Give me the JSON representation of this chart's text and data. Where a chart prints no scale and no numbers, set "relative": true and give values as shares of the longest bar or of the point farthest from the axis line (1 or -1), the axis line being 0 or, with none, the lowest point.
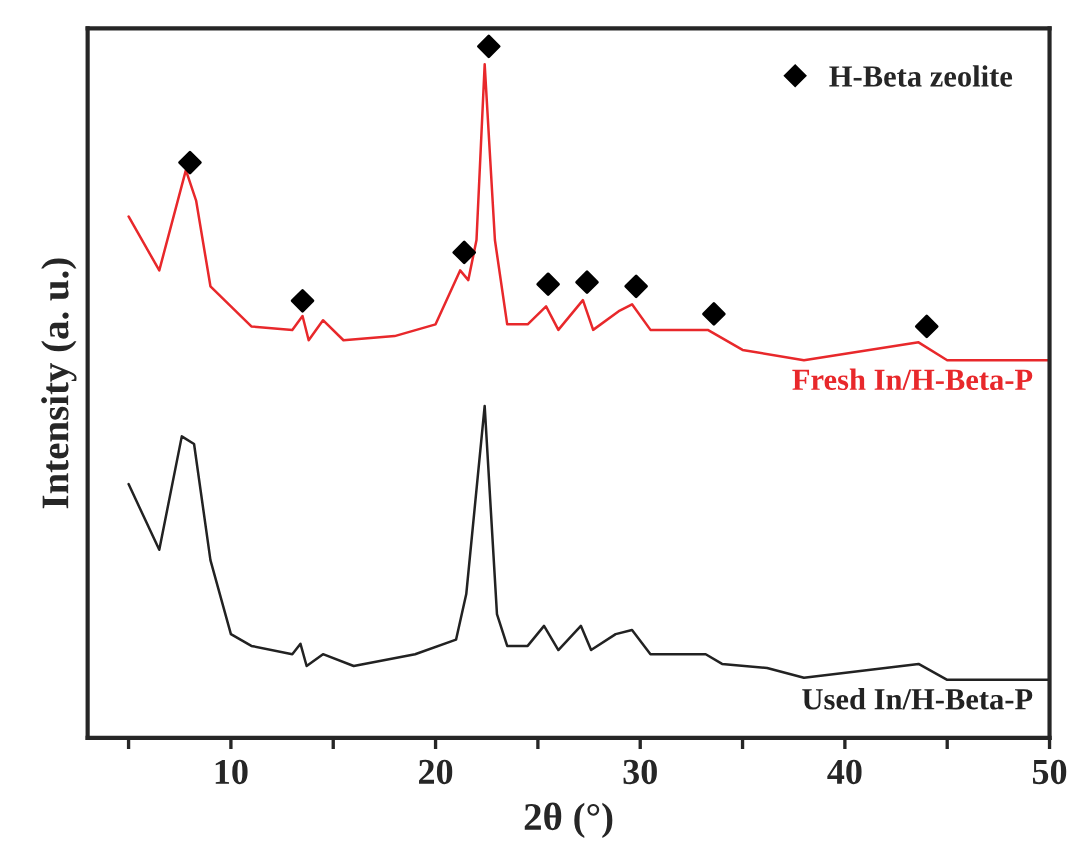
{
  "chart_data": {
    "type": "line",
    "relative": true,
    "xlabel": "2θ (°)",
    "ylabel": "Intensity (a. u.)",
    "xlim": [
      3,
      50
    ],
    "xticks": [
      {
        "value": 5,
        "label": null
      },
      10,
      {
        "value": 15,
        "label": null
      },
      20,
      {
        "value": 25,
        "label": null
      },
      30,
      {
        "value": 35,
        "label": null
      },
      40,
      {
        "value": 45,
        "label": null
      },
      50
    ],
    "grid": false,
    "legend": "top right",
    "tick_labels": "x",
    "series": [
      {
        "name": "Fresh In/H-Beta-P",
        "color": "#e8282b",
        "marker": "none",
        "x": [
          5,
          6.5,
          7.8,
          8.3,
          9,
          10,
          11,
          13,
          13.5,
          13.8,
          14.5,
          15.5,
          18,
          20,
          21.2,
          21.6,
          22.0,
          22.4,
          22.9,
          23.5,
          24.5,
          25.4,
          26,
          27.2,
          27.7,
          29,
          29.6,
          30.5,
          33.3,
          35,
          38,
          43.6,
          45,
          50
        ],
        "values": [
          0.754,
          0.676,
          0.821,
          0.777,
          0.653,
          0.624,
          0.595,
          0.59,
          0.61,
          0.575,
          0.604,
          0.575,
          0.581,
          0.598,
          0.676,
          0.662,
          0.72,
          0.974,
          0.72,
          0.598,
          0.598,
          0.624,
          0.59,
          0.633,
          0.59,
          0.618,
          0.627,
          0.59,
          0.59,
          0.561,
          0.546,
          0.572,
          0.546,
          0.546
        ]
      },
      {
        "name": "Used In/H-Beta-P",
        "color": "#222222",
        "marker": "none",
        "x": [
          5,
          6.5,
          7.6,
          8.2,
          9,
          10,
          11,
          13,
          13.4,
          13.7,
          14.5,
          16,
          19,
          21,
          21.5,
          22.4,
          23,
          23.5,
          24.5,
          25.3,
          26,
          27.1,
          27.6,
          28.8,
          29.6,
          30.5,
          33.2,
          34,
          36.2,
          38,
          43.6,
          45,
          50
        ],
        "values": [
          0.367,
          0.272,
          0.436,
          0.425,
          0.257,
          0.15,
          0.133,
          0.121,
          0.136,
          0.104,
          0.121,
          0.104,
          0.121,
          0.142,
          0.208,
          0.48,
          0.179,
          0.133,
          0.133,
          0.162,
          0.127,
          0.162,
          0.127,
          0.15,
          0.156,
          0.121,
          0.121,
          0.107,
          0.101,
          0.087,
          0.107,
          0.084,
          0.084
        ]
      },
      {
        "name": "H-Beta zeolite",
        "color": "#000000",
        "type": "scatter",
        "marker": "diamond",
        "x": [
          8.0,
          13.5,
          21.4,
          22.6,
          25.5,
          27.4,
          29.8,
          33.6,
          44.0
        ],
        "values": [
          0.832,
          0.632,
          0.702,
          1,
          0.656,
          0.659,
          0.653,
          0.613,
          0.595
        ]
      }
    ]
  }
}
